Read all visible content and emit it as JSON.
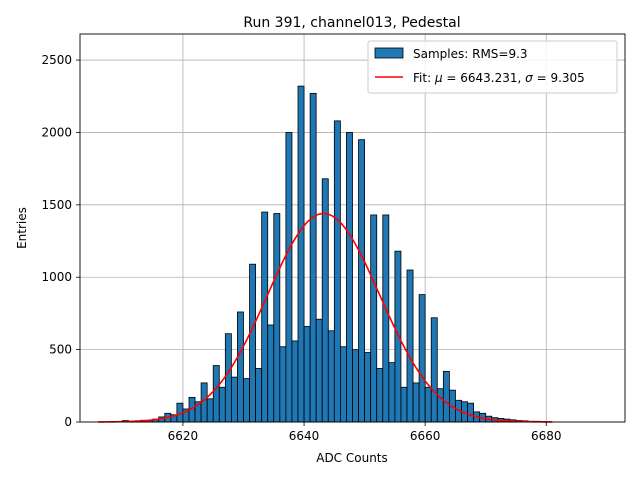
{
  "chart_data": {
    "type": "bar",
    "title": "Run 391, channel013, Pedestal",
    "xlabel": "ADC Counts",
    "ylabel": "Entries",
    "xlim": [
      6603,
      6693
    ],
    "ylim": [
      0,
      2680
    ],
    "xticks": [
      6620,
      6640,
      6660,
      6680
    ],
    "yticks": [
      0,
      500,
      1000,
      1500,
      2000,
      2500
    ],
    "grid": true,
    "legend_position": "top-right",
    "colors": {
      "bar": "#1f77b4",
      "bar_edge": "#000000",
      "fit": "#ff0000",
      "grid": "#b0b0b0"
    },
    "histogram": {
      "name": "Samples: RMS=9.3",
      "bin_start": 6610,
      "bin_width": 1,
      "values": [
        10,
        5,
        8,
        12,
        10,
        20,
        35,
        60,
        50,
        130,
        90,
        170,
        140,
        270,
        160,
        390,
        240,
        610,
        310,
        760,
        300,
        1090,
        370,
        1450,
        670,
        1440,
        520,
        2000,
        560,
        2320,
        660,
        2270,
        710,
        1680,
        630,
        2080,
        520,
        2000,
        500,
        1950,
        480,
        1430,
        370,
        1430,
        410,
        1180,
        240,
        1050,
        270,
        880,
        240,
        720,
        230,
        350,
        220,
        150,
        140,
        130,
        70,
        60,
        40,
        30,
        25,
        20,
        15,
        10,
        8,
        5,
        5,
        3
      ]
    },
    "fit": {
      "label_prefix": "Fit: ",
      "mu_symbol": "μ",
      "mu_text": " = 6643.231, ",
      "sigma_symbol": "σ",
      "sigma_text": " = 9.305",
      "mu": 6643.231,
      "sigma": 9.305,
      "amplitude": 1440,
      "x_range": [
        6606,
        6681
      ]
    }
  }
}
